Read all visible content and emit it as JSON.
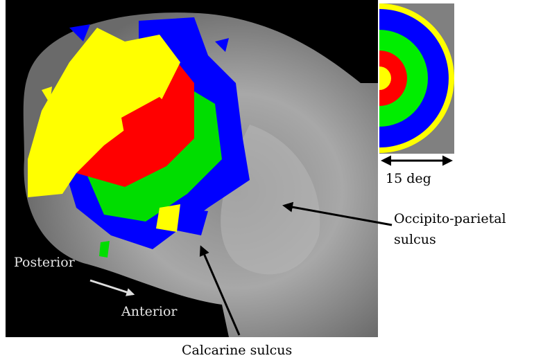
{
  "labels": {
    "occipito_parietal": [
      "Occipito-parietal",
      "sulcus"
    ],
    "calcarine": "Calcarine sulcus",
    "posterior": "Posterior",
    "anterior": "Anterior",
    "scale": "15 deg"
  }
}
